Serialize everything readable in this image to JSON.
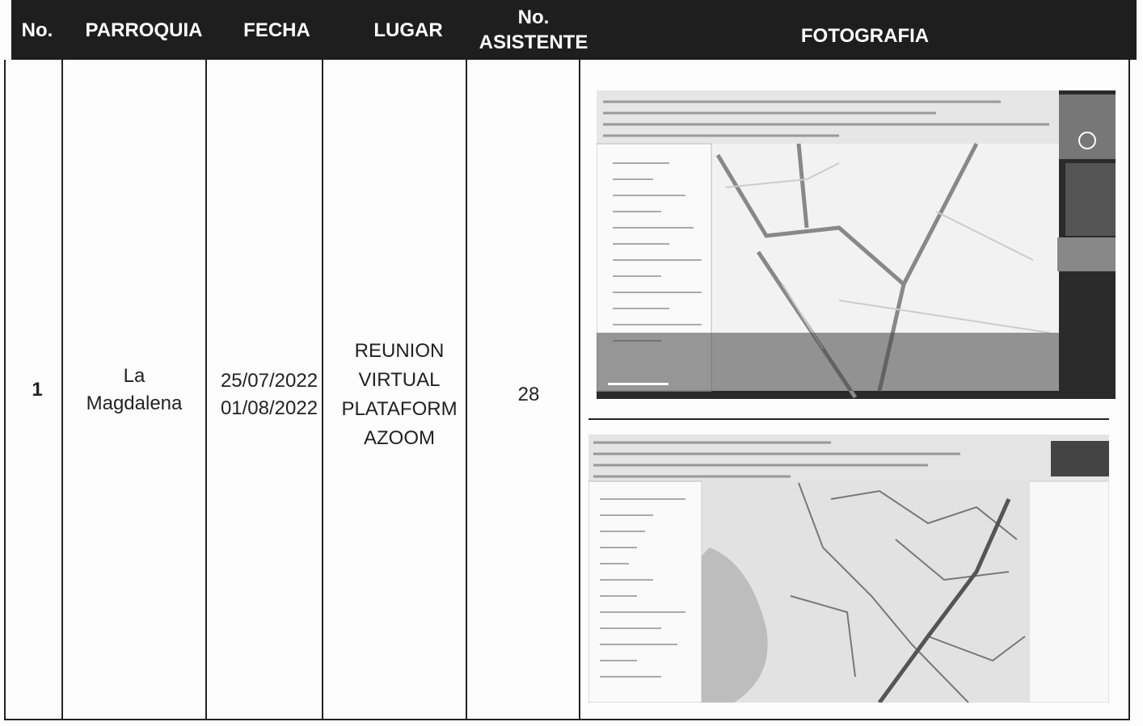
{
  "table": {
    "header": [
      "No.",
      "PARROQUIA",
      "FECHA",
      "LUGAR",
      [
        "No.",
        "ASISTENTE"
      ],
      "FOTOGRAFIA"
    ],
    "rows": [
      {
        "no": "1",
        "parroquia": [
          "La",
          "Magdalena"
        ],
        "fecha": [
          "25/07/2022",
          "01/08/2022"
        ],
        "lugar": [
          "REUNION",
          "VIRTUAL",
          "PLATAFORM",
          "AZOOM"
        ],
        "asistentes": "28"
      }
    ]
  }
}
